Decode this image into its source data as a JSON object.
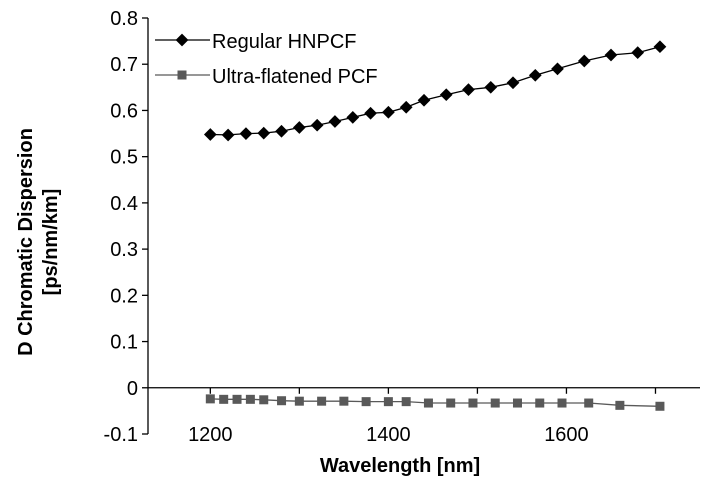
{
  "chart_data": {
    "type": "line",
    "xlabel": "Wavelength [nm]",
    "ylabel_lines": [
      "D Chromatic Dispersion",
      "[ps/nm/km]"
    ],
    "xlim": [
      1130,
      1750
    ],
    "ylim": [
      -0.1,
      0.8
    ],
    "xticks": [
      1200,
      1400,
      1600
    ],
    "yticks": [
      "-0.1",
      "0",
      "0.1",
      "0.2",
      "0.3",
      "0.4",
      "0.5",
      "0.6",
      "0.7",
      "0.8"
    ],
    "grid": false,
    "legend_position": "top-left",
    "series": [
      {
        "name": "Regular HNPCF",
        "marker": "diamond",
        "color": "#000000",
        "x": [
          1200,
          1220,
          1240,
          1260,
          1280,
          1300,
          1320,
          1340,
          1360,
          1380,
          1400,
          1420,
          1440,
          1465,
          1490,
          1515,
          1540,
          1565,
          1590,
          1620,
          1650,
          1680,
          1705
        ],
        "y": [
          0.548,
          0.547,
          0.55,
          0.551,
          0.555,
          0.563,
          0.568,
          0.576,
          0.585,
          0.594,
          0.596,
          0.607,
          0.622,
          0.634,
          0.645,
          0.65,
          0.66,
          0.676,
          0.69,
          0.707,
          0.72,
          0.725,
          0.738
        ]
      },
      {
        "name": "Ultra-flatened PCF",
        "marker": "square",
        "color": "#595959",
        "x": [
          1200,
          1215,
          1230,
          1245,
          1260,
          1280,
          1300,
          1325,
          1350,
          1375,
          1400,
          1420,
          1445,
          1470,
          1495,
          1520,
          1545,
          1570,
          1595,
          1625,
          1660,
          1705
        ],
        "y": [
          -0.024,
          -0.025,
          -0.025,
          -0.025,
          -0.026,
          -0.028,
          -0.029,
          -0.029,
          -0.029,
          -0.03,
          -0.03,
          -0.03,
          -0.033,
          -0.033,
          -0.033,
          -0.033,
          -0.033,
          -0.033,
          -0.033,
          -0.033,
          -0.038,
          -0.04
        ]
      }
    ]
  }
}
